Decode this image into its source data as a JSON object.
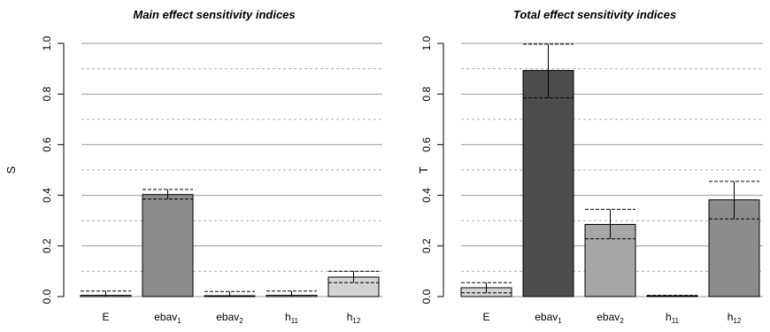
{
  "chart_data": [
    {
      "type": "bar",
      "title": "Main effect sensitivity indices",
      "ylabel": "S",
      "xlabel": "",
      "ylim": [
        0,
        1.0
      ],
      "yticks": [
        "0.0",
        "0.2",
        "0.4",
        "0.6",
        "0.8",
        "1.0"
      ],
      "grid": true,
      "categories": [
        {
          "base": "E",
          "sub": ""
        },
        {
          "base": "ebav",
          "sub": "1"
        },
        {
          "base": "ebav",
          "sub": "2"
        },
        {
          "base": "h",
          "sub": "11"
        },
        {
          "base": "h",
          "sub": "12"
        }
      ],
      "values": [
        0.005,
        0.403,
        0.002,
        0.005,
        0.077
      ],
      "ci_lower": [
        0.0,
        0.385,
        0.0,
        0.0,
        0.055
      ],
      "ci_upper": [
        0.022,
        0.423,
        0.02,
        0.022,
        0.1
      ],
      "bar_colors": [
        "#d3d3d3",
        "#8c8c8c",
        "#d3d3d3",
        "#d3d3d3",
        "#d3d3d3"
      ]
    },
    {
      "type": "bar",
      "title": "Total effect sensitivity indices",
      "ylabel": "T",
      "xlabel": "",
      "ylim": [
        0,
        1.0
      ],
      "yticks": [
        "0.0",
        "0.2",
        "0.4",
        "0.6",
        "0.8",
        "1.0"
      ],
      "grid": true,
      "categories": [
        {
          "base": "E",
          "sub": ""
        },
        {
          "base": "ebav",
          "sub": "1"
        },
        {
          "base": "ebav",
          "sub": "2"
        },
        {
          "base": "h",
          "sub": "11"
        },
        {
          "base": "h",
          "sub": "12"
        }
      ],
      "values": [
        0.035,
        0.893,
        0.285,
        0.003,
        0.382
      ],
      "ci_lower": [
        0.015,
        0.785,
        0.228,
        0.0,
        0.307
      ],
      "ci_upper": [
        0.055,
        0.997,
        0.345,
        0.005,
        0.455
      ],
      "bar_colors": [
        "#d3d3d3",
        "#4d4d4d",
        "#a6a6a6",
        "#d3d3d3",
        "#8c8c8c"
      ]
    }
  ]
}
